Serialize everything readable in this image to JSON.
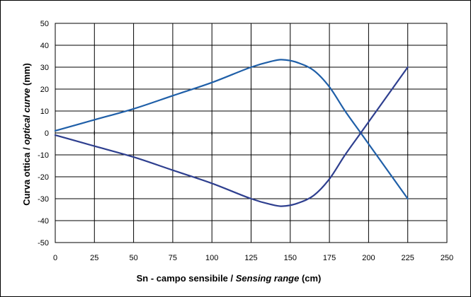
{
  "chart_data": {
    "type": "line",
    "xlabel": {
      "part1": "Sn - campo sensibile / ",
      "part2": "Sensing range",
      "part3": " (cm)"
    },
    "ylabel": {
      "part1": "Curva ottica / ",
      "part2": "optical curve",
      "part3": " (mm)"
    },
    "xlim": [
      0,
      250
    ],
    "ylim": [
      -50,
      50
    ],
    "xticks": [
      0,
      25,
      50,
      75,
      100,
      125,
      150,
      175,
      200,
      225,
      250
    ],
    "yticks": [
      50,
      40,
      30,
      20,
      10,
      0,
      -10,
      -20,
      -30,
      -40,
      -50
    ],
    "grid": true,
    "series": [
      {
        "color": "#1f5fa8",
        "x": [
          0,
          25,
          50,
          75,
          100,
          125,
          140,
          147,
          155,
          165,
          175,
          185,
          195,
          205,
          215,
          225
        ],
        "y": [
          1,
          6,
          11,
          17,
          23,
          30,
          33,
          33.3,
          32,
          28.5,
          21,
          10,
          0,
          -10,
          -20,
          -30
        ]
      },
      {
        "color": "#2e3f8f",
        "x": [
          0,
          25,
          50,
          75,
          100,
          125,
          140,
          147,
          155,
          165,
          175,
          185,
          195,
          205,
          215,
          225
        ],
        "y": [
          -1,
          -6,
          -11,
          -17,
          -23,
          -30,
          -33,
          -33.3,
          -32,
          -28.5,
          -21,
          -10,
          0,
          10,
          20,
          30
        ]
      }
    ]
  }
}
